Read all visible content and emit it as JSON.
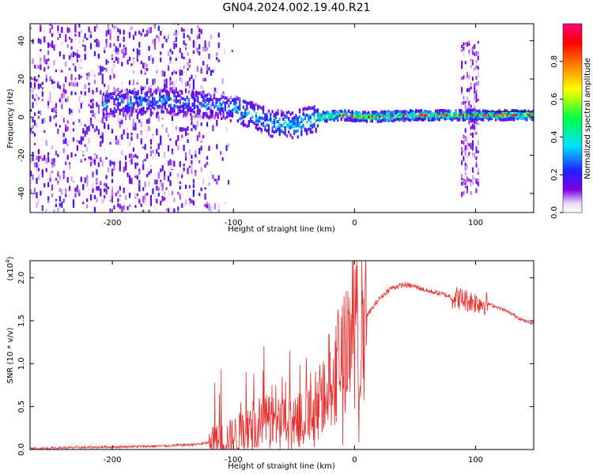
{
  "title": "GN04.2024.002.19.40.R21",
  "chart_data": [
    {
      "type": "heatmap",
      "title": "GN04.2024.002.19.40.R21",
      "xlabel": "Height of straight line (km)",
      "ylabel": "Frequency (Hz)",
      "xlim": [
        -268,
        148
      ],
      "ylim": [
        -50,
        49
      ],
      "x_ticks": [
        -200,
        -100,
        0,
        100
      ],
      "y_ticks": [
        -40,
        -20,
        0,
        20,
        40
      ],
      "colorbar": {
        "label": "Normalized spectral amplitude",
        "range": [
          0.0,
          1.0
        ],
        "ticks": [
          0.0,
          0.2,
          0.4,
          0.6,
          0.8
        ],
        "colors": [
          "#ffffff",
          "#c8a0f0",
          "#8000e0",
          "#2020ff",
          "#00e0ff",
          "#00ff40",
          "#ffff00",
          "#ff8000",
          "#ff0000",
          "#ff0080"
        ]
      },
      "features": {
        "noise_region_x": [
          -268,
          -130
        ],
        "noise_freq_range": [
          -50,
          49
        ],
        "ridge": [
          {
            "x": -190,
            "f": 8
          },
          {
            "x": -170,
            "f": 9
          },
          {
            "x": -150,
            "f": 8
          },
          {
            "x": -130,
            "f": 7
          },
          {
            "x": -110,
            "f": 6
          },
          {
            "x": -90,
            "f": 2
          },
          {
            "x": -70,
            "f": -3
          },
          {
            "x": -50,
            "f": -4
          },
          {
            "x": -30,
            "f": 0
          },
          {
            "x": -10,
            "f": 1
          },
          {
            "x": 10,
            "f": 0
          },
          {
            "x": 50,
            "f": 1
          },
          {
            "x": 90,
            "f": 1
          },
          {
            "x": 120,
            "f": 1
          },
          {
            "x": 148,
            "f": 1
          }
        ],
        "vertical_burst_x": [
          88,
          102
        ],
        "vertical_burst_freq_range": [
          -40,
          40
        ],
        "reference_line_freq": 3
      }
    },
    {
      "type": "line",
      "xlabel": "Height of straight line (km)",
      "ylabel": "SNR (10 * v/v)",
      "y_scale_label": "(x10",
      "y_scale_exponent": "4",
      "xlim": [
        -268,
        148
      ],
      "ylim": [
        0.0,
        2.2
      ],
      "x_ticks": [
        -200,
        -100,
        0,
        100
      ],
      "y_ticks": [
        "0.0",
        "0.5",
        "1.0",
        "1.5",
        "2.0"
      ],
      "y_tick_values": [
        0.0,
        0.5,
        1.0,
        1.5,
        2.0
      ],
      "series": [
        {
          "name": "SNR",
          "color": "#e83030",
          "x": [
            -268,
            -240,
            -200,
            -160,
            -130,
            -110,
            -100,
            -90,
            -80,
            -70,
            -60,
            -50,
            -40,
            -30,
            -20,
            -15,
            -10,
            -5,
            0,
            10,
            20,
            30,
            40,
            50,
            60,
            70,
            80,
            90,
            100,
            110,
            120,
            130,
            140,
            148
          ],
          "y": [
            0.01,
            0.02,
            0.03,
            0.04,
            0.06,
            0.1,
            0.15,
            0.22,
            0.3,
            0.35,
            0.3,
            0.28,
            0.35,
            0.55,
            0.8,
            1.0,
            1.1,
            1.3,
            1.45,
            1.55,
            1.75,
            1.88,
            1.92,
            1.9,
            1.85,
            1.82,
            1.78,
            1.75,
            1.72,
            1.7,
            1.65,
            1.58,
            1.5,
            1.47
          ]
        }
      ]
    }
  ]
}
